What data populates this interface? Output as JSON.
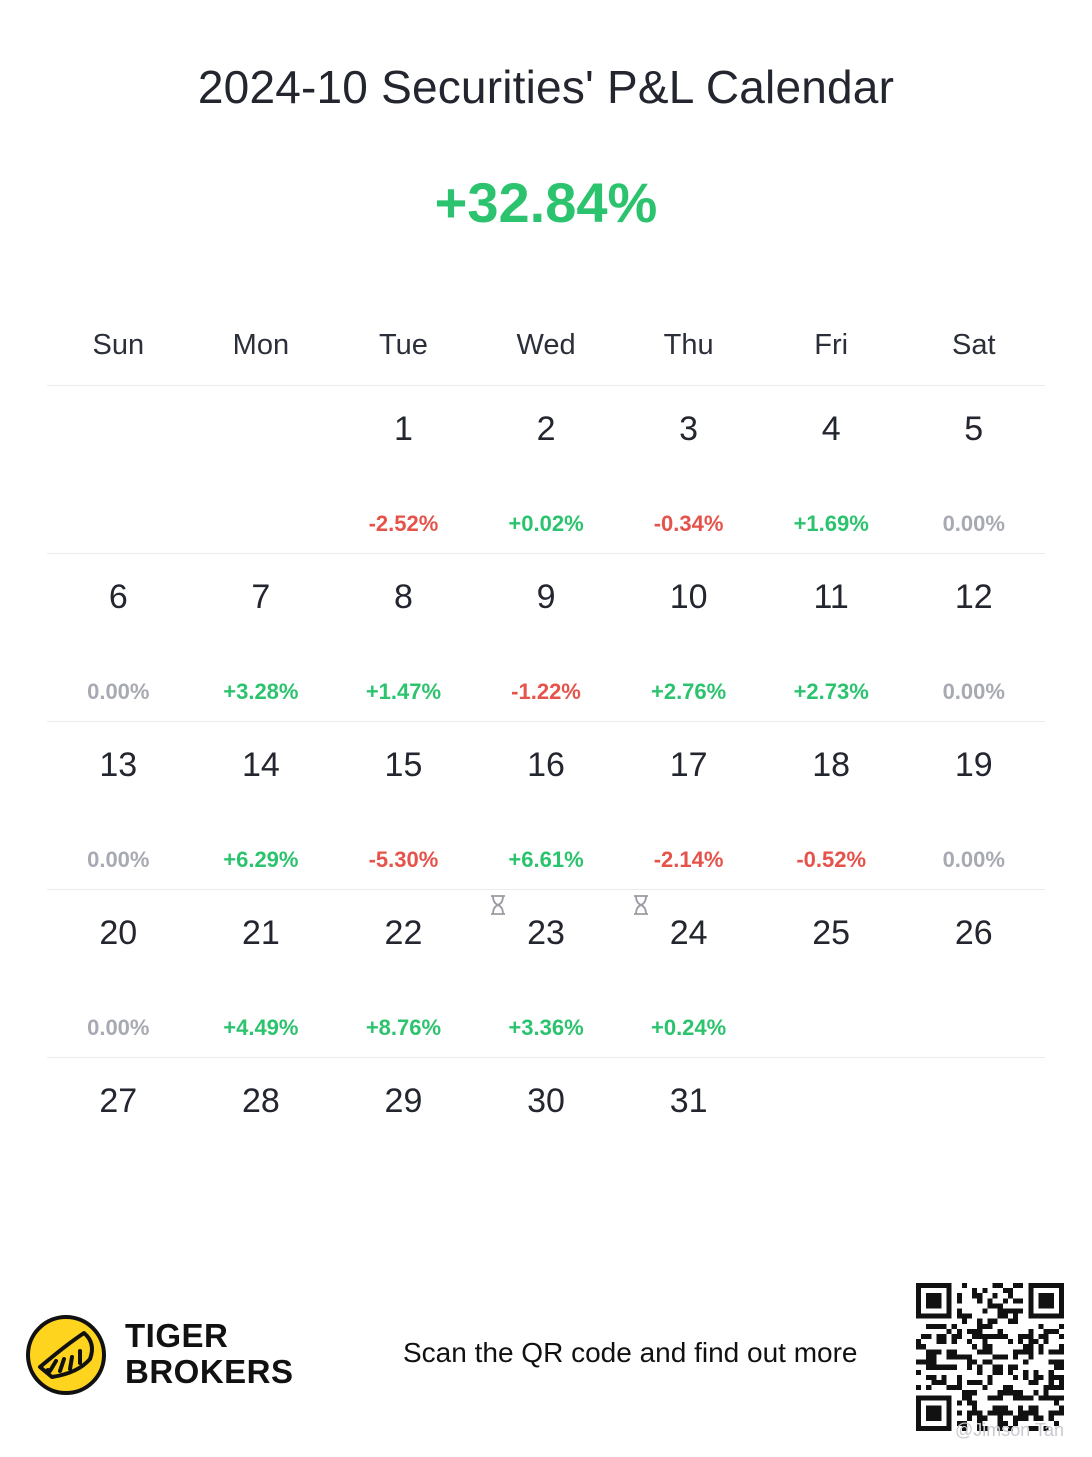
{
  "title": "2024-10 Securities' P&L Calendar",
  "total_pl": "+32.84%",
  "weekdays": [
    "Sun",
    "Mon",
    "Tue",
    "Wed",
    "Thu",
    "Fri",
    "Sat"
  ],
  "weeks": [
    [
      {
        "day": "",
        "pl": "",
        "kind": ""
      },
      {
        "day": "",
        "pl": "",
        "kind": ""
      },
      {
        "day": "1",
        "pl": "-2.52%",
        "kind": "neg"
      },
      {
        "day": "2",
        "pl": "+0.02%",
        "kind": "pos"
      },
      {
        "day": "3",
        "pl": "-0.34%",
        "kind": "neg"
      },
      {
        "day": "4",
        "pl": "+1.69%",
        "kind": "pos"
      },
      {
        "day": "5",
        "pl": "0.00%",
        "kind": "zero"
      }
    ],
    [
      {
        "day": "6",
        "pl": "0.00%",
        "kind": "zero"
      },
      {
        "day": "7",
        "pl": "+3.28%",
        "kind": "pos"
      },
      {
        "day": "8",
        "pl": "+1.47%",
        "kind": "pos"
      },
      {
        "day": "9",
        "pl": "-1.22%",
        "kind": "neg"
      },
      {
        "day": "10",
        "pl": "+2.76%",
        "kind": "pos"
      },
      {
        "day": "11",
        "pl": "+2.73%",
        "kind": "pos"
      },
      {
        "day": "12",
        "pl": "0.00%",
        "kind": "zero"
      }
    ],
    [
      {
        "day": "13",
        "pl": "0.00%",
        "kind": "zero"
      },
      {
        "day": "14",
        "pl": "+6.29%",
        "kind": "pos"
      },
      {
        "day": "15",
        "pl": "-5.30%",
        "kind": "neg"
      },
      {
        "day": "16",
        "pl": "+6.61%",
        "kind": "pos"
      },
      {
        "day": "17",
        "pl": "-2.14%",
        "kind": "neg"
      },
      {
        "day": "18",
        "pl": "-0.52%",
        "kind": "neg"
      },
      {
        "day": "19",
        "pl": "0.00%",
        "kind": "zero"
      }
    ],
    [
      {
        "day": "20",
        "pl": "0.00%",
        "kind": "zero"
      },
      {
        "day": "21",
        "pl": "+4.49%",
        "kind": "pos"
      },
      {
        "day": "22",
        "pl": "+8.76%",
        "kind": "pos"
      },
      {
        "day": "23",
        "pl": "+3.36%",
        "kind": "pos",
        "icon": "hourglass-icon"
      },
      {
        "day": "24",
        "pl": "+0.24%",
        "kind": "pos",
        "icon": "hourglass-icon"
      },
      {
        "day": "25",
        "pl": "",
        "kind": ""
      },
      {
        "day": "26",
        "pl": "",
        "kind": ""
      }
    ],
    [
      {
        "day": "27",
        "pl": "",
        "kind": ""
      },
      {
        "day": "28",
        "pl": "",
        "kind": ""
      },
      {
        "day": "29",
        "pl": "",
        "kind": ""
      },
      {
        "day": "30",
        "pl": "",
        "kind": ""
      },
      {
        "day": "31",
        "pl": "",
        "kind": ""
      },
      {
        "day": "",
        "pl": "",
        "kind": ""
      },
      {
        "day": "",
        "pl": "",
        "kind": ""
      }
    ]
  ],
  "colors": {
    "positive": "#2cc36f",
    "negative": "#e5534b",
    "zero": "#a7aab2",
    "brand_yellow": "#ffd41f"
  },
  "footer": {
    "brand_line1": "TIGER",
    "brand_line2": "BROKERS",
    "scan_text": "Scan the QR code and find out more",
    "watermark": "@Jimson Tan"
  }
}
